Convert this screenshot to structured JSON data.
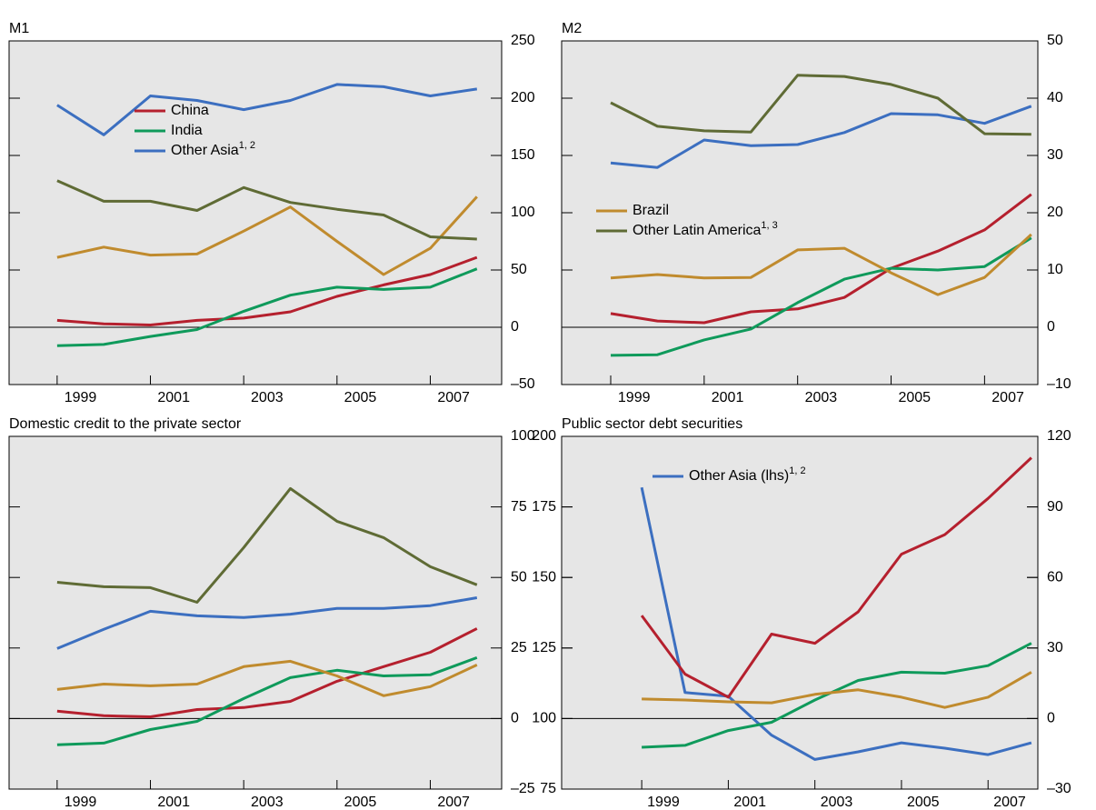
{
  "chart_data": [
    {
      "type": "line",
      "title": "M1",
      "y_axis_side": "right",
      "x": [
        1999,
        2000,
        2001,
        2002,
        2003,
        2004,
        2005,
        2006,
        2007,
        2008
      ],
      "xlim": [
        1997.97,
        2008.53
      ],
      "xticks": [
        1999,
        2001,
        2003,
        2005,
        2007
      ],
      "ylim": [
        -50,
        250
      ],
      "yticks": [
        {
          "value": -50,
          "label": "–50"
        },
        0,
        50,
        100,
        150,
        200,
        250
      ],
      "series": [
        {
          "name": "China",
          "color": "#b5202e",
          "values": [
            6,
            3,
            2,
            6,
            8,
            13.5,
            27,
            37,
            46,
            61
          ]
        },
        {
          "name": "India",
          "color": "#0f9a5b",
          "values": [
            -16,
            -15,
            -8,
            -2,
            14,
            28,
            35,
            33,
            35,
            51
          ]
        },
        {
          "name": "Other Asia",
          "name_sup": "1, 2",
          "color": "#3c6fc0",
          "values": [
            194,
            168,
            202,
            198,
            190,
            198,
            212,
            210,
            202,
            208
          ]
        },
        {
          "color": "#c08b2e",
          "values": [
            61,
            70,
            63,
            64,
            84,
            105,
            75,
            46,
            69,
            114
          ]
        },
        {
          "color": "#5f6b35",
          "values": [
            128,
            110,
            110,
            102,
            122,
            109,
            103,
            98,
            79,
            77
          ]
        }
      ]
    },
    {
      "type": "line",
      "title": "M2",
      "y_axis_side": "right",
      "x": [
        1999,
        2000,
        2001,
        2002,
        2003,
        2004,
        2005,
        2006,
        2007,
        2008
      ],
      "xlim": [
        1997.95,
        2008.14
      ],
      "xticks": [
        1999,
        2001,
        2003,
        2005,
        2007
      ],
      "ylim": [
        -10,
        50
      ],
      "yticks": [
        {
          "value": -10,
          "label": "–10"
        },
        0,
        10,
        20,
        30,
        40,
        50
      ],
      "series": [
        {
          "color": "#b5202e",
          "values": [
            2.4,
            1.1,
            0.8,
            2.7,
            3.2,
            5.2,
            10.3,
            13.3,
            17,
            23.2
          ]
        },
        {
          "color": "#0f9a5b",
          "values": [
            -4.9,
            -4.8,
            -2.2,
            -0.3,
            4.3,
            8.4,
            10.3,
            10,
            10.6,
            15.6
          ]
        },
        {
          "color": "#3c6fc0",
          "values": [
            28.7,
            27.9,
            32.7,
            31.7,
            31.9,
            34,
            37.3,
            37.1,
            35.6,
            38.6
          ]
        },
        {
          "name": "Brazil",
          "color": "#c08b2e",
          "values": [
            8.6,
            9.2,
            8.6,
            8.7,
            13.5,
            13.8,
            9.5,
            5.7,
            8.7,
            16.2
          ]
        },
        {
          "name": "Other Latin America",
          "name_sup": "1, 3",
          "color": "#5f6b35",
          "values": [
            39.2,
            35.1,
            34.3,
            34.1,
            44,
            43.8,
            42.4,
            40,
            33.8,
            33.7
          ]
        }
      ]
    },
    {
      "type": "line",
      "title": "Domestic credit to the private sector",
      "y_axis_side": "right",
      "x": [
        1999,
        2000,
        2001,
        2002,
        2003,
        2004,
        2005,
        2006,
        2007,
        2008
      ],
      "xlim": [
        1997.97,
        2008.53
      ],
      "xticks": [
        1999,
        2001,
        2003,
        2005,
        2007
      ],
      "ylim": [
        -25,
        100
      ],
      "yticks": [
        {
          "value": -25,
          "label": "–25"
        },
        0,
        25,
        50,
        75,
        100
      ],
      "series": [
        {
          "color": "#b5202e",
          "values": [
            2.6,
            1,
            0.6,
            3.2,
            3.9,
            6.1,
            13.2,
            18.4,
            23.5,
            31.9
          ]
        },
        {
          "color": "#0f9a5b",
          "values": [
            -9.3,
            -8.7,
            -3.9,
            -1,
            7.1,
            14.5,
            17.1,
            15.1,
            15.5,
            21.6
          ]
        },
        {
          "color": "#3c6fc0",
          "values": [
            24.8,
            31.6,
            38,
            36.4,
            35.8,
            37,
            39,
            39,
            40,
            42.8
          ]
        },
        {
          "color": "#c08b2e",
          "values": [
            10.3,
            12.2,
            11.6,
            12.2,
            18.4,
            20.3,
            15.1,
            8.1,
            11.3,
            19
          ]
        },
        {
          "color": "#5f6b35",
          "values": [
            48.3,
            46.7,
            46.4,
            41.2,
            60.6,
            81.5,
            69.9,
            64.1,
            53.8,
            47.4
          ]
        }
      ]
    },
    {
      "type": "line",
      "title": "Public sector debt securities",
      "x": [
        1999,
        2000,
        2001,
        2002,
        2003,
        2004,
        2005,
        2006,
        2007,
        2008
      ],
      "xlim": [
        1997.15,
        2008.15
      ],
      "xticks": [
        1999,
        2001,
        2003,
        2005,
        2007
      ],
      "ylim": [
        75,
        200
      ],
      "yticks": [
        75,
        100,
        125,
        150,
        175,
        200
      ],
      "y2lim": [
        -30,
        120
      ],
      "y2ticks": [
        {
          "value": -30,
          "label": "–30"
        },
        0,
        30,
        60,
        90,
        120
      ],
      "series": [
        {
          "name": "Other Asia (lhs)",
          "name_sup": "1, 2",
          "color": "#3c6fc0",
          "values": [
            181.9,
            109.2,
            107.9,
            94.1,
            85.5,
            88.2,
            91.4,
            89.5,
            87.2,
            91.4
          ]
        },
        {
          "color": "#b5202e",
          "axis": "y2",
          "values": [
            43.8,
            18.9,
            9.1,
            35.9,
            32,
            45.4,
            69.9,
            78.2,
            93.6,
            110.9
          ]
        },
        {
          "color": "#0f9a5b",
          "axis": "y2",
          "values": [
            -12.2,
            -11.4,
            -5.1,
            -1.6,
            7.9,
            16.2,
            19.7,
            19.3,
            22.5,
            32
          ]
        },
        {
          "color": "#c08b2e",
          "axis": "y2",
          "values": [
            8.3,
            7.9,
            7.1,
            6.7,
            10.3,
            12.2,
            9.1,
            4.7,
            9.1,
            19.7
          ]
        }
      ]
    }
  ]
}
